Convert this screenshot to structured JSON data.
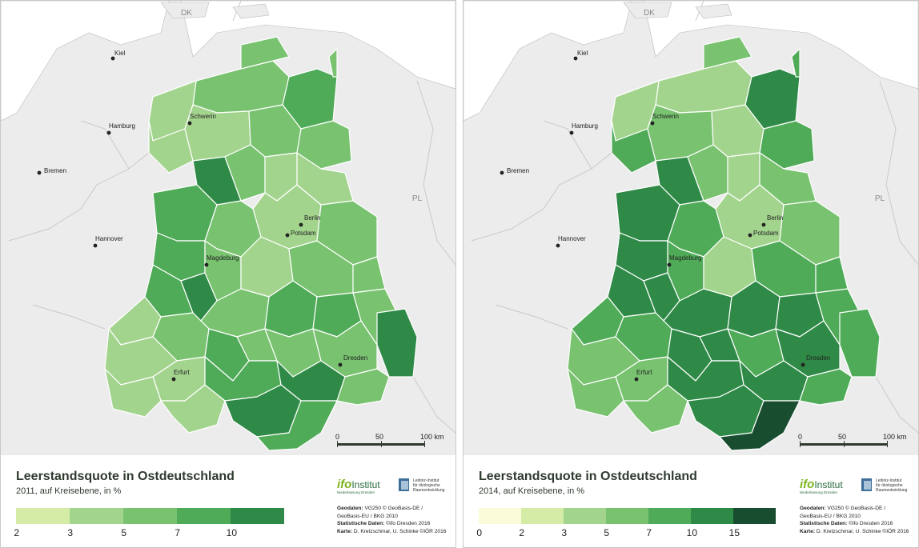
{
  "colors": {
    "c0": "#fafbd9",
    "c1": "#d5eca7",
    "c2": "#a3d48e",
    "c3": "#79c270",
    "c4": "#4fab58",
    "c5": "#2f8a47",
    "c6": "#184d2f",
    "outside_land": "#ececec",
    "water": "#ffffff",
    "title_color": "#2f3a2f"
  },
  "labels": {
    "countries": [
      "DK",
      "PL"
    ],
    "cities": [
      "Kiel",
      "Hamburg",
      "Bremen",
      "Hannover",
      "Schwerin",
      "Berlin",
      "Potsdam",
      "Magdeburg",
      "Erfurt",
      "Dresden"
    ]
  },
  "left": {
    "title": "Leerstandsquote in Ostdeutschland",
    "subtitle": "2011, auf Kreisebene, in %",
    "legend_ticks": [
      "2",
      "3",
      "5",
      "7",
      "10"
    ],
    "legend_colors": [
      "c1",
      "c2",
      "c3",
      "c4",
      "c5"
    ]
  },
  "right": {
    "title": "Leerstandsquote in Ostdeutschland",
    "subtitle": "2014, auf Kreisebene, in %",
    "legend_ticks": [
      "0",
      "2",
      "3",
      "5",
      "7",
      "10",
      "15"
    ],
    "legend_colors": [
      "c0",
      "c1",
      "c2",
      "c3",
      "c4",
      "c5",
      "c6"
    ]
  },
  "scale": {
    "ticks": [
      "0",
      "50",
      "100 km"
    ]
  },
  "credits": {
    "geodaten_label": "Geodaten:",
    "geodaten_text": "VG250 © GeoBasis-DE /",
    "geodaten_text2": "GeoBasis-EU / BKG 2010",
    "statistische_label": "Statistische Daten:",
    "statistische_text": "©ifo Dresden 2016",
    "karte_label": "Karte:",
    "karte_text": "D. Kretzschmar, U. Schinke ©IÖR 2016"
  },
  "logos": {
    "ifo_word": "ifo",
    "ifo_inst": "Institut",
    "ifo_sub": "Niederlassung Dresden",
    "ioer_text": "Leibniz-Institut\nfür ökologische\nRaumentwicklung"
  }
}
